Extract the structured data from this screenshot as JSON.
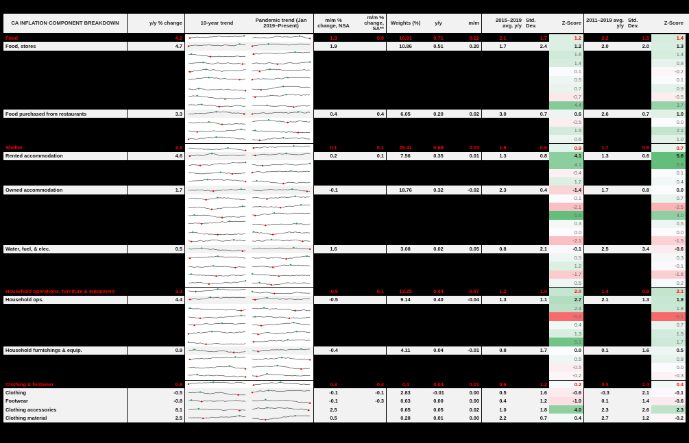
{
  "title": "CA INFLATION COMPONENT BREAKDOWN",
  "headers": {
    "yy_change": "y/y % change",
    "trend_10y": "10-year trend",
    "trend_pandemic": "Pandemic trend (Jan 2019–Present)",
    "mm_nsa": "m/m % change, NSA",
    "mm_sa": "m/m % change, SA**",
    "weights": "Weights (%)",
    "y_y": "y/y",
    "m_m": "m/m",
    "avg_2015_2019": "2015–2019 avg. y/y",
    "std_dev_1": "Std. Dev.",
    "zscore_1": "Z-Score",
    "avg_2011_2019": "2011–2019 avg. y/y",
    "std_dev_2": "Std. Dev.",
    "zscore_2": "Z-Score"
  },
  "colors": {
    "category_red": "#ff0000",
    "z_green_strong": "#63be7b",
    "z_red_strong": "#f8696b",
    "header_bg": "#f2f2f2"
  },
  "rows": [
    {
      "type": "cat",
      "name": "Food",
      "yy": "4.2",
      "mmn": "1.3",
      "mms": "0.9",
      "wt": "16.91",
      "y": "0.71",
      "m": "0.22",
      "a1": "2.1",
      "s1": "1.7",
      "z1": "1.2",
      "a2": "2.2",
      "s2": "1.5",
      "z2": "1.4"
    },
    {
      "type": "main",
      "name": "Food, stores",
      "yy": "4.7",
      "mmn": "1.9",
      "mms": "",
      "wt": "10.86",
      "y": "0.51",
      "m": "0.20",
      "a1": "1.7",
      "s1": "2.4",
      "z1": "1.2",
      "a2": "2.0",
      "s2": "2.0",
      "z2": "1.3"
    },
    {
      "type": "sub",
      "z1": "1.6",
      "z2": "1.4"
    },
    {
      "type": "sub",
      "z1": "1.4",
      "z2": "0.8"
    },
    {
      "type": "sub",
      "z1": "0.1",
      "z2": "-0.2"
    },
    {
      "type": "sub",
      "z1": "0.5",
      "z2": "0.1"
    },
    {
      "type": "sub",
      "z1": "0.7",
      "z2": "0.9"
    },
    {
      "type": "sub",
      "z1": "-0.7",
      "z2": "-0.5"
    },
    {
      "type": "sub",
      "z1": "4.4",
      "z2": "3.7"
    },
    {
      "type": "main",
      "name": "Food purchased from restaurants",
      "yy": "3.3",
      "mmn": "0.4",
      "mms": "0.4",
      "wt": "6.05",
      "y": "0.20",
      "m": "0.02",
      "a1": "3.0",
      "s1": "0.7",
      "z1": "0.6",
      "a2": "2.6",
      "s2": "0.7",
      "z2": "1.0"
    },
    {
      "type": "sub",
      "z1": "-0.5",
      "z2": "0.0"
    },
    {
      "type": "sub",
      "z1": "1.5",
      "z2": "2.1"
    },
    {
      "type": "sub",
      "z1": "0.6",
      "z2": "1.0"
    },
    {
      "type": "cat",
      "name": "Shelter",
      "yy": "2.3",
      "mmn": "0.1",
      "mms": "0.1",
      "wt": "29.41",
      "y": "0.68",
      "m": "0.03",
      "a1": "1.8",
      "s1": "0.6",
      "z1": "0.9",
      "a2": "1.7",
      "s2": "0.8",
      "z2": "0.7"
    },
    {
      "type": "main",
      "name": "Rented accommodation",
      "yy": "4.6",
      "mmn": "0.2",
      "mms": "0.1",
      "wt": "7.56",
      "y": "0.35",
      "m": "0.01",
      "a1": "1.3",
      "s1": "0.8",
      "z1": "4.1",
      "a2": "1.3",
      "s2": "0.6",
      "z2": "5.6"
    },
    {
      "type": "sub",
      "z1": "4.1",
      "z2": "5.6"
    },
    {
      "type": "sub",
      "z1": "-0.4",
      "z2": "0.1"
    },
    {
      "type": "sub",
      "z1": "1.2",
      "z2": "0.4"
    },
    {
      "type": "main",
      "name": "Owned accommodation",
      "yy": "1.7",
      "mmn": "-0.1",
      "mms": "",
      "wt": "18.76",
      "y": "0.32",
      "m": "-0.02",
      "a1": "2.3",
      "s1": "0.4",
      "z1": "-1.4",
      "a2": "1.7",
      "s2": "0.8",
      "z2": "0.0"
    },
    {
      "type": "sub",
      "z1": "0.1",
      "z2": "0.7"
    },
    {
      "type": "sub",
      "z1": "-2.1",
      "z2": "-2.5"
    },
    {
      "type": "sub",
      "z1": "5.6",
      "z2": "4.0"
    },
    {
      "type": "sub",
      "z1": "0.3",
      "z2": "0.5"
    },
    {
      "type": "sub",
      "z1": "0.0",
      "z2": "0.0"
    },
    {
      "type": "sub",
      "z1": "-2.1",
      "z2": "-1.5"
    },
    {
      "type": "main",
      "name": "Water, fuel, & elec.",
      "yy": "0.5",
      "mmn": "1.6",
      "mms": "",
      "wt": "3.08",
      "y": "0.02",
      "m": "0.05",
      "a1": "0.8",
      "s1": "2.1",
      "z1": "-0.1",
      "a2": "2.5",
      "s2": "3.4",
      "z2": "-0.6"
    },
    {
      "type": "sub",
      "z1": "0.5",
      "z2": "0.3"
    },
    {
      "type": "sub",
      "z1": "1.2",
      "z2": "-0.1"
    },
    {
      "type": "sub",
      "z1": "-1.7",
      "z2": "-1.6"
    },
    {
      "type": "sub",
      "z1": "0.5",
      "z2": "0.2"
    },
    {
      "type": "cat",
      "name": "Household operations, furniture & equipment",
      "yy": "3.3",
      "mmn": "-0.5",
      "mms": "0.1",
      "wt": "13.25",
      "y": "0.44",
      "m": "-0.07",
      "a1": "1.2",
      "s1": "1.0",
      "z1": "2.0",
      "a2": "1.4",
      "s2": "0.9",
      "z2": "2.1"
    },
    {
      "type": "main",
      "name": "Household ops.",
      "yy": "4.4",
      "mmn": "-0.5",
      "mms": "",
      "wt": "9.14",
      "y": "0.40",
      "m": "-0.04",
      "a1": "1.3",
      "s1": "1.1",
      "z1": "2.7",
      "a2": "2.1",
      "s2": "1.3",
      "z2": "1.9"
    },
    {
      "type": "sub",
      "z1": "2.4",
      "z2": "1.8"
    },
    {
      "type": "sub",
      "z1": "-5.0",
      "z2": "-5.1"
    },
    {
      "type": "sub",
      "z1": "0.4",
      "z2": "0.7"
    },
    {
      "type": "sub",
      "z1": "1.3",
      "z2": "1.5"
    },
    {
      "type": "sub",
      "z1": "5.1",
      "z2": "1.7"
    },
    {
      "type": "main",
      "name": "Household furnishings & equip.",
      "yy": "0.9",
      "mmn": "-0.4",
      "mms": "",
      "wt": "4.11",
      "y": "0.04",
      "m": "-0.01",
      "a1": "0.8",
      "s1": "1.7",
      "z1": "0.0",
      "a2": "0.1",
      "s2": "1.6",
      "z2": "0.5"
    },
    {
      "type": "sub",
      "z1": "0.5",
      "z2": "0.8"
    },
    {
      "type": "sub",
      "z1": "-0.5",
      "z2": "0.0"
    },
    {
      "type": "sub",
      "z1": "-0.2",
      "z2": "-0.3"
    },
    {
      "type": "cat",
      "name": "Clothing & footwear",
      "yy": "0.8",
      "mmn": "0.3",
      "mms": "0.4",
      "wt": "4.4",
      "y": "0.04",
      "m": "0.01",
      "a1": "0.6",
      "s1": "1.2",
      "z1": "0.2",
      "a2": "0.3",
      "s2": "1.4",
      "z2": "0.4"
    },
    {
      "type": "main",
      "name": "Clothing",
      "yy": "-0.5",
      "mmn": "-0.1",
      "mms": "-0.1",
      "wt": "2.83",
      "y": "-0.01",
      "m": "0.00",
      "a1": "0.5",
      "s1": "1.6",
      "z1": "-0.6",
      "a2": "-0.3",
      "s2": "2.1",
      "z2": "-0.1"
    },
    {
      "type": "main",
      "name": "Footwear",
      "yy": "-0.8",
      "mmn": "-0.1",
      "mms": "-0.3",
      "wt": "0.63",
      "y": "0.00",
      "m": "0.00",
      "a1": "0.4",
      "s1": "1.2",
      "z1": "-1.0",
      "a2": "0.1",
      "s2": "1.4",
      "z2": "-0.6"
    },
    {
      "type": "main",
      "name": "Clothing accessories",
      "yy": "8.1",
      "mmn": "2.5",
      "mms": "",
      "wt": "0.65",
      "y": "0.05",
      "m": "0.02",
      "a1": "1.0",
      "s1": "1.8",
      "z1": "4.0",
      "a2": "2.3",
      "s2": "2.6",
      "z2": "2.3"
    },
    {
      "type": "main",
      "name": "Clothing material",
      "yy": "2.5",
      "mmn": "0.5",
      "mms": "",
      "wt": "0.28",
      "y": "0.01",
      "m": "0.00",
      "a1": "2.2",
      "s1": "0.7",
      "z1": "0.4",
      "a2": "2.7",
      "s2": "1.2",
      "z2": "-0.2"
    }
  ]
}
